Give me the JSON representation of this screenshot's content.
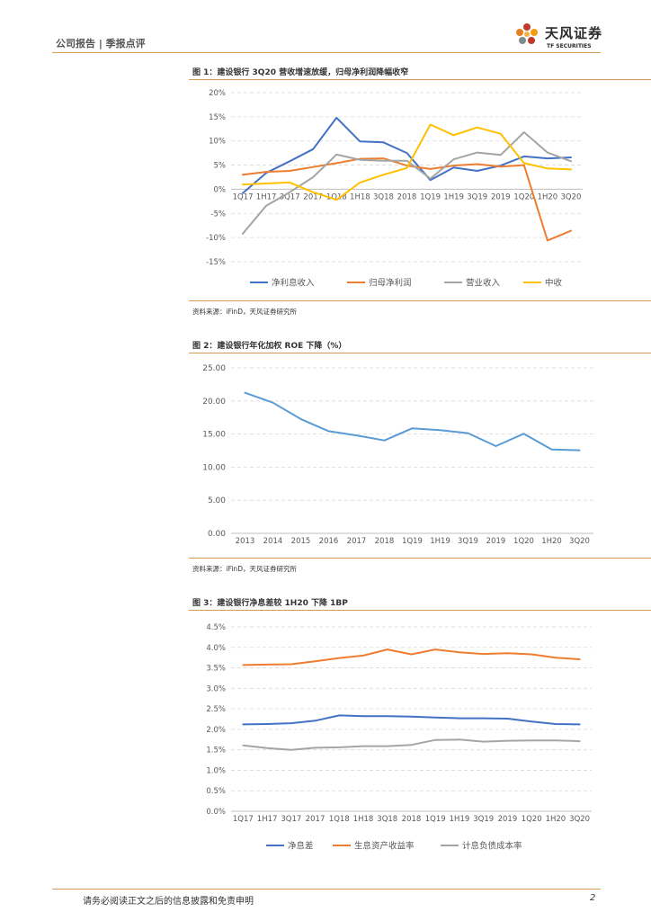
{
  "header": {
    "report_type": "公司报告 | 季报点评",
    "logo_cn": "天风证券",
    "logo_en": "TF SECURITIES"
  },
  "colors": {
    "blue": "#4472c4",
    "orange": "#ed7d31",
    "gray": "#a5a5a5",
    "yellow": "#ffc000",
    "light_blue": "#5b9bd5",
    "rule": "#d79a5a"
  },
  "figures": [
    {
      "title": "图 1：建设银行 3Q20 营收增速放缓，归母净利润降幅收窄",
      "source": "资料来源：iFinD，天风证券研究所"
    },
    {
      "title": "图 2：建设银行年化加权 ROE 下降（%）",
      "source": "资料来源：iFinD，天风证券研究所"
    },
    {
      "title": "图 3：建设银行净息差较 1H20 下降 1BP"
    }
  ],
  "footer": {
    "disclaimer": "请务必阅读正文之后的信息披露和免责申明",
    "page": "2"
  },
  "chart_data": [
    {
      "type": "line",
      "title": "图 1：建设银行 3Q20 营收增速放缓，归母净利润降幅收窄",
      "categories": [
        "1Q17",
        "1H17",
        "3Q17",
        "2017",
        "1Q18",
        "1H18",
        "3Q18",
        "2018",
        "1Q19",
        "1H19",
        "3Q19",
        "2019",
        "1Q20",
        "1H20",
        "3Q20"
      ],
      "ylim": [
        -15,
        20
      ],
      "yticks": [
        -15,
        -10,
        -5,
        0,
        5,
        10,
        15,
        20
      ],
      "yformat": "percent0",
      "grid": true,
      "category_axis_at_zero": true,
      "legend": "bottom",
      "series": [
        {
          "name": "净利息收入",
          "color": "#4472c4",
          "values": [
            -0.8,
            3.4,
            5.8,
            8.3,
            14.8,
            9.9,
            9.7,
            7.5,
            1.9,
            4.5,
            3.8,
            4.9,
            6.8,
            6.4,
            6.6
          ]
        },
        {
          "name": "归母净利润",
          "color": "#ed7d31",
          "values": [
            3.0,
            3.6,
            3.8,
            4.6,
            5.4,
            6.3,
            6.4,
            4.9,
            4.2,
            4.9,
            5.2,
            4.7,
            5.0,
            -10.6,
            -8.6
          ]
        },
        {
          "name": "营业收入",
          "color": "#a5a5a5",
          "values": [
            -9.2,
            -3.4,
            -0.6,
            2.5,
            7.2,
            6.1,
            5.9,
            5.9,
            2.2,
            6.2,
            7.6,
            7.1,
            11.8,
            7.6,
            5.8
          ]
        },
        {
          "name": "中收",
          "color": "#ffc000",
          "values": [
            1.0,
            1.2,
            1.4,
            -0.6,
            -2.2,
            1.4,
            3.0,
            4.4,
            13.4,
            11.2,
            12.8,
            11.5,
            5.4,
            4.3,
            4.1
          ]
        }
      ]
    },
    {
      "type": "line",
      "title": "图 2：建设银行年化加权 ROE 下降（%）",
      "categories": [
        "2013",
        "2014",
        "2015",
        "2016",
        "2017",
        "2018",
        "1Q19",
        "1H19",
        "3Q19",
        "2019",
        "1Q20",
        "1H20",
        "3Q20"
      ],
      "ylim": [
        0,
        25
      ],
      "yticks": [
        0,
        5,
        10,
        15,
        20,
        25
      ],
      "yformat": "fixed2",
      "grid": true,
      "legend": "none",
      "series": [
        {
          "name": "年化加权ROE",
          "color": "#5b9bd5",
          "values": [
            21.23,
            19.74,
            17.27,
            15.44,
            14.8,
            14.04,
            15.87,
            15.6,
            15.13,
            13.18,
            15.05,
            12.68,
            12.55
          ]
        }
      ]
    },
    {
      "type": "line",
      "title": "图 3：建设银行净息差较 1H20 下降 1BP",
      "categories": [
        "1Q17",
        "1H17",
        "3Q17",
        "2017",
        "1Q18",
        "1H18",
        "3Q18",
        "2018",
        "1Q19",
        "1H19",
        "3Q19",
        "2019",
        "1Q20",
        "1H20",
        "3Q20"
      ],
      "ylim": [
        0,
        4.5
      ],
      "yticks": [
        0,
        0.5,
        1.0,
        1.5,
        2.0,
        2.5,
        3.0,
        3.5,
        4.0,
        4.5
      ],
      "yformat": "percent1",
      "grid": true,
      "legend": "bottom",
      "series": [
        {
          "name": "净息差",
          "color": "#4472c4",
          "values": [
            2.12,
            2.13,
            2.15,
            2.21,
            2.34,
            2.32,
            2.32,
            2.31,
            2.29,
            2.27,
            2.27,
            2.26,
            2.19,
            2.13,
            2.12
          ]
        },
        {
          "name": "生息资产收益率",
          "color": "#ed7d31",
          "values": [
            3.57,
            3.58,
            3.59,
            3.66,
            3.74,
            3.8,
            3.95,
            3.83,
            3.95,
            3.88,
            3.84,
            3.86,
            3.83,
            3.75,
            3.71
          ]
        },
        {
          "name": "计息负债成本率",
          "color": "#a5a5a5",
          "values": [
            1.61,
            1.54,
            1.5,
            1.55,
            1.56,
            1.59,
            1.59,
            1.62,
            1.74,
            1.75,
            1.7,
            1.72,
            1.73,
            1.73,
            1.71
          ]
        }
      ]
    }
  ]
}
